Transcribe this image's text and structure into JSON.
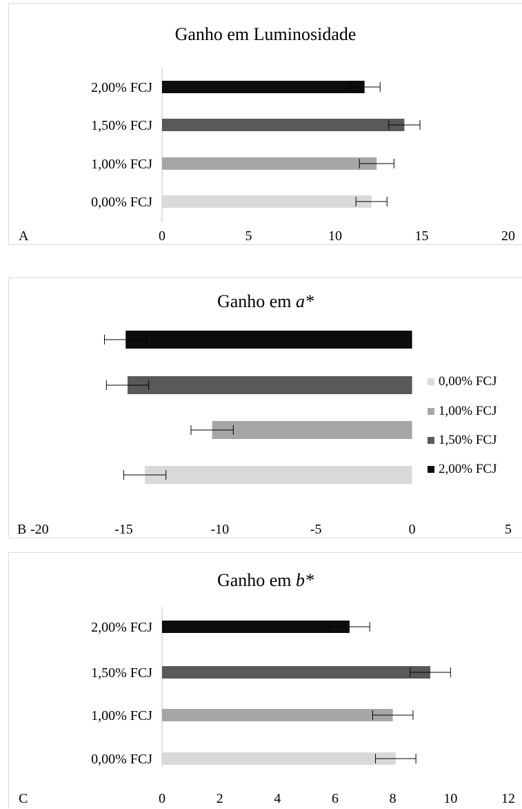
{
  "chart_data": [
    {
      "type": "bar",
      "orientation": "horizontal",
      "panel_label": "A",
      "title": "Ganho em Luminosidade",
      "title_prefix": "",
      "title_var": "",
      "categories": [
        "0,00% FCJ",
        "1,00% FCJ",
        "1,50% FCJ",
        "2,00% FCJ"
      ],
      "values": [
        12.1,
        12.4,
        14.0,
        11.7
      ],
      "errors": [
        0.9,
        1.0,
        0.9,
        0.9
      ],
      "colors": [
        "#d9d9d9",
        "#a6a6a6",
        "#595959",
        "#0d0d0d"
      ],
      "xlim": [
        0,
        20
      ],
      "xticks": [
        "0",
        "5",
        "10",
        "15",
        "20"
      ],
      "legend": "none"
    },
    {
      "type": "bar",
      "orientation": "horizontal",
      "panel_label": "B",
      "title": "",
      "title_prefix": "Ganho em ",
      "title_var": "a*",
      "categories": [
        "0,00% FCJ",
        "1,00% FCJ",
        "1,50% FCJ",
        "2,00% FCJ"
      ],
      "values": [
        -13.9,
        -10.4,
        -14.8,
        -14.9
      ],
      "errors": [
        1.1,
        1.1,
        1.1,
        1.1
      ],
      "colors": [
        "#d9d9d9",
        "#a6a6a6",
        "#595959",
        "#0d0d0d"
      ],
      "xlim": [
        -20,
        5
      ],
      "xticks": [
        "-20",
        "-15",
        "-10",
        "-5",
        "0",
        "5"
      ],
      "legend": "right"
    },
    {
      "type": "bar",
      "orientation": "horizontal",
      "panel_label": "C",
      "title": "",
      "title_prefix": "Ganho em ",
      "title_var": "b*",
      "categories": [
        "0,00% FCJ",
        "1,00% FCJ",
        "1,50% FCJ",
        "2,00% FCJ"
      ],
      "values": [
        8.1,
        8.0,
        9.3,
        6.5
      ],
      "errors": [
        0.7,
        0.7,
        0.7,
        0.7
      ],
      "colors": [
        "#d9d9d9",
        "#a6a6a6",
        "#595959",
        "#0d0d0d"
      ],
      "xlim": [
        0,
        12
      ],
      "xticks": [
        "0",
        "2",
        "4",
        "6",
        "8",
        "10",
        "12"
      ],
      "legend": "none"
    }
  ]
}
